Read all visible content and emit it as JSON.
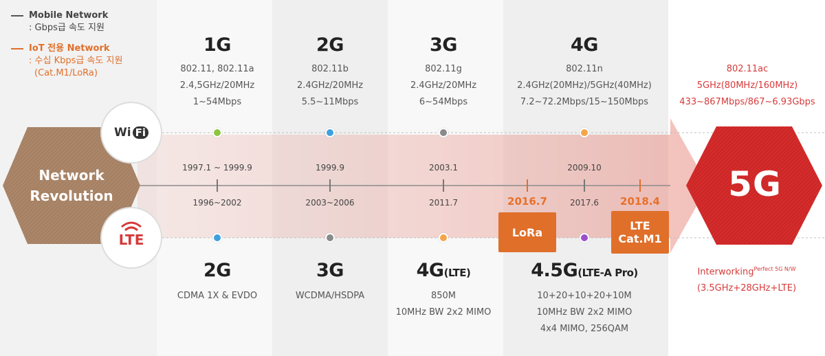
{
  "legend": {
    "mobile_title": "Mobile Network",
    "mobile_desc": ": Gbps급 속도 지원",
    "iot_title": "IoT 전용 Network",
    "iot_desc_1": ": 수십 Kbps급 속도 지원",
    "iot_desc_2": "(Cat.M1/LoRa)"
  },
  "hub": {
    "line1": "Network",
    "line2": "Revolution"
  },
  "wifi_badge": {
    "left": "Wi",
    "right": "Fi"
  },
  "lte_badge": "LTE",
  "wifi": [
    {
      "gen": "1G",
      "std": "802.11, 802.11a",
      "band": "2.4,5GHz/20MHz",
      "rate": "1~54Mbps",
      "date": "1997.1 ~ 1999.9"
    },
    {
      "gen": "2G",
      "std": "802.11b",
      "band": "2.4GHz/20MHz",
      "rate": "5.5~11Mbps",
      "date": "1999.9"
    },
    {
      "gen": "3G",
      "std": "802.11g",
      "band": "2.4GHz/20MHz",
      "rate": "6~54Mbps",
      "date": "2003.1"
    },
    {
      "gen": "4G",
      "std": "802.11n",
      "band": "2.4GHz(20MHz)/5GHz(40MHz)",
      "rate": "7.2~72.2Mbps/15~150Mbps",
      "date": "2009.10"
    }
  ],
  "wifi_5g": {
    "std": "802.11ac",
    "band": "5GHz(80MHz/160MHz)",
    "rate": "433~867Mbps/867~6.93Gbps"
  },
  "mobile": [
    {
      "date": "1996~2002",
      "gen": "2G",
      "gen_suffix": "",
      "l1": "CDMA 1X & EVDO",
      "l2": "",
      "l3": ""
    },
    {
      "date": "2003~2006",
      "gen": "3G",
      "gen_suffix": "",
      "l1": "WCDMA/HSDPA",
      "l2": "",
      "l3": ""
    },
    {
      "date": "2011.7",
      "gen": "4G",
      "gen_suffix": "(LTE)",
      "l1": "850M",
      "l2": "10MHz BW 2x2 MIMO",
      "l3": ""
    },
    {
      "date": "2017.6",
      "gen": "4.5G",
      "gen_suffix": "(LTE-A Pro)",
      "l1": "10+20+10+20+10M",
      "l2": "10MHz BW 2x2 MIMO",
      "l3": "4x4 MIMO, 256QAM"
    }
  ],
  "iot": [
    {
      "date": "2016.7",
      "label1": "LoRa",
      "label2": ""
    },
    {
      "date": "2018.4",
      "label1": "LTE",
      "label2": "Cat.M1"
    }
  ],
  "fiveg": {
    "label": "5G",
    "interworking": "Interworking",
    "interworking_sup": "Perfect 5G N/W",
    "interworking_detail": "(3.5GHz+28GHz+LTE)"
  },
  "colors": {
    "wifi_1g": "#8cc63f",
    "wifi_2g": "#3fa0e0",
    "wifi_3g": "#8a8a8a",
    "wifi_4g": "#f4a54a",
    "mob_2g": "#3fa0e0",
    "mob_3g": "#8a8a8a",
    "mob_4g": "#f4a54a",
    "mob_45g": "#9b4fc9",
    "accent_orange": "#e06f2a",
    "accent_red": "#d63a3a",
    "hub_brown": "#a88267"
  }
}
